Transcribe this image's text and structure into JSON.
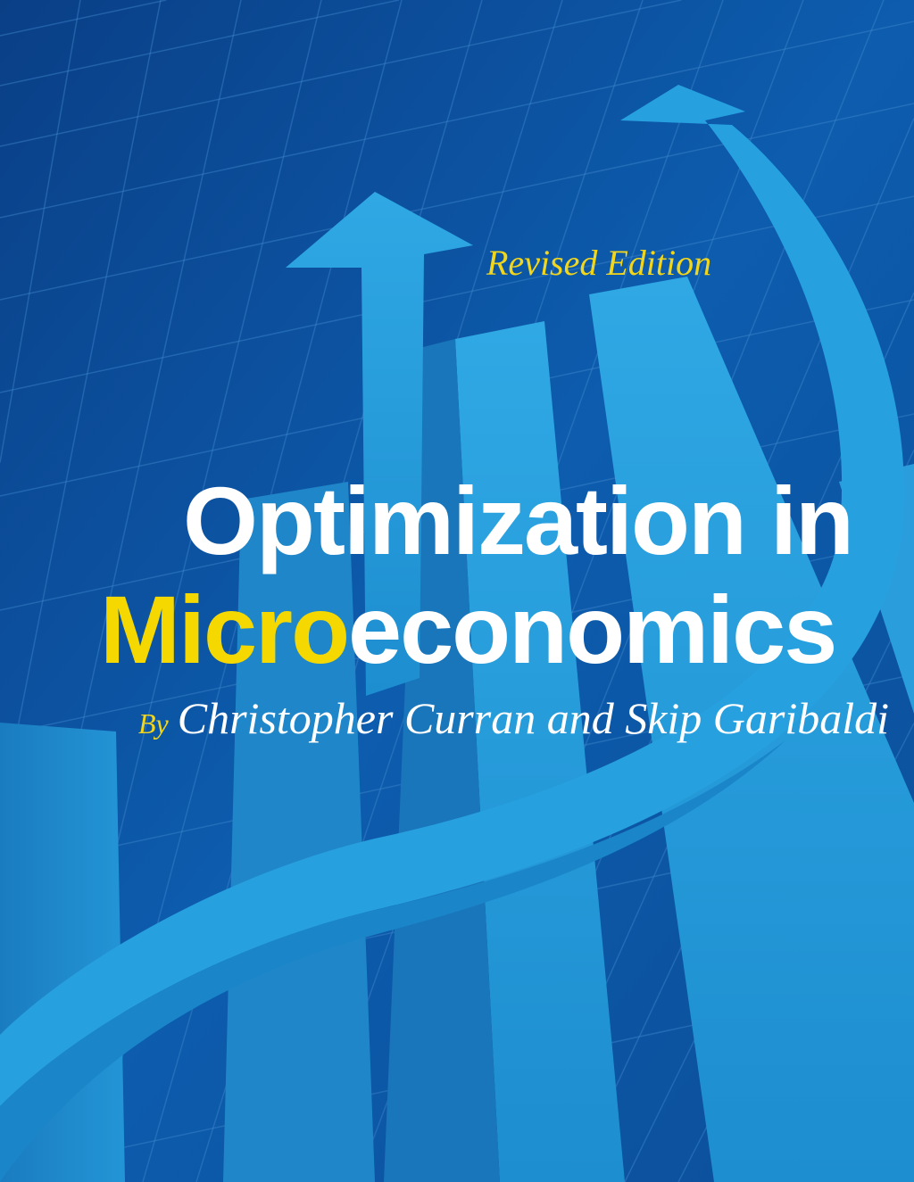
{
  "cover": {
    "edition": "Revised Edition",
    "title_line1": "Optimization in",
    "title_line2_highlight": "Micro",
    "title_line2_rest": "economics",
    "by_label": "By",
    "authors": "Christopher Curran and Skip Garibaldi"
  },
  "colors": {
    "background": "#0b4f9a",
    "shapes": "#2ba3e0",
    "accent_yellow": "#f5d800",
    "title_white": "#ffffff"
  }
}
